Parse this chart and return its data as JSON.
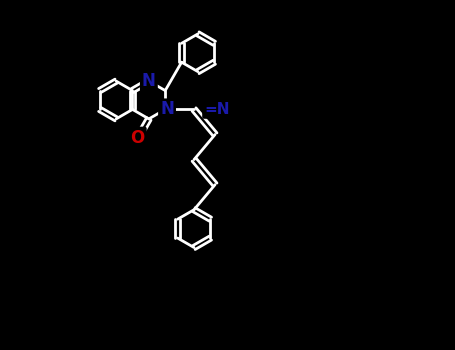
{
  "bg": "#000000",
  "bond_color": "#ffffff",
  "N_color": "#1a1aaa",
  "O_color": "#cc0000",
  "bond_lw": 2.0,
  "figsize": [
    4.55,
    3.5
  ],
  "dpi": 100,
  "xlim": [
    0,
    10
  ],
  "ylim": [
    0,
    7.7
  ]
}
